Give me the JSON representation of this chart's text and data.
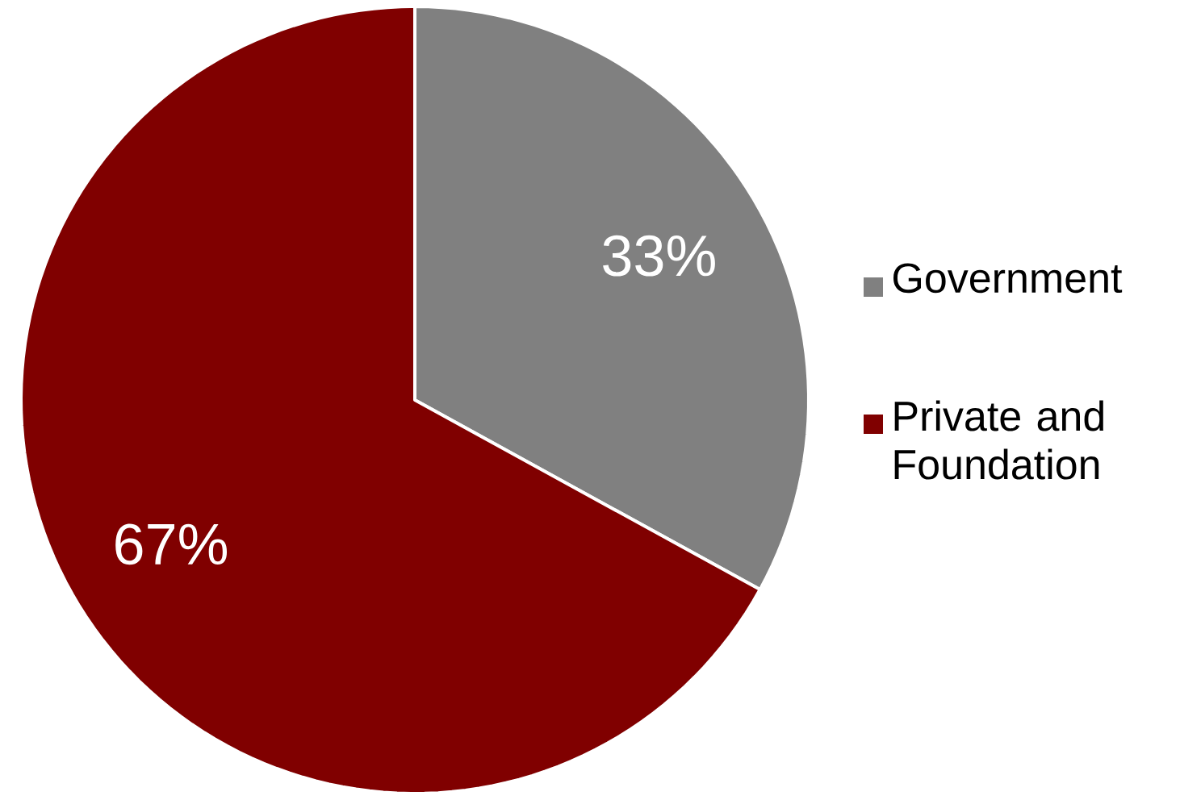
{
  "chart_data": {
    "type": "pie",
    "categories": [
      "Government",
      "Private and Foundation"
    ],
    "values": [
      33,
      67
    ],
    "colors": [
      "#808080",
      "#800000"
    ],
    "value_labels": [
      "33%",
      "67%"
    ],
    "legend": "right"
  }
}
